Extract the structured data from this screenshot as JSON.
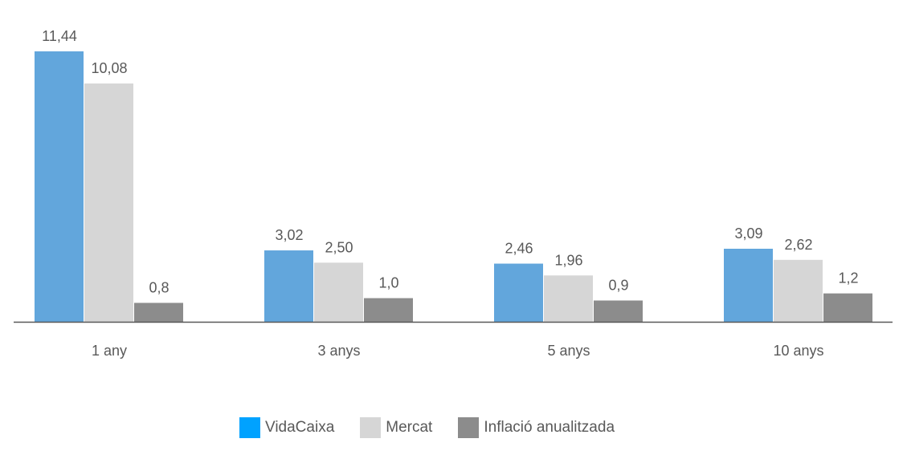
{
  "chart_data": {
    "type": "bar",
    "title": "",
    "xlabel": "",
    "ylabel": "",
    "ylim": [
      0,
      11.44
    ],
    "grid": false,
    "legend_position": "bottom",
    "categories": [
      "1 any",
      "3 anys",
      "5 anys",
      "10 anys"
    ],
    "series": [
      {
        "name": "VidaCaixa",
        "values": [
          11.44,
          3.02,
          2.46,
          3.09
        ],
        "labels": [
          "11,44",
          "3,02",
          "2,46",
          "3,09"
        ],
        "color": "#62A6DC",
        "legend_color": "#00A2FF"
      },
      {
        "name": "Mercat",
        "values": [
          10.08,
          2.5,
          1.96,
          2.62
        ],
        "labels": [
          "10,08",
          "2,50",
          "1,96",
          "2,62"
        ],
        "color": "#D6D6D6",
        "legend_color": "#D6D6D6"
      },
      {
        "name": "Inflació anualitzada",
        "values": [
          0.8,
          1.0,
          0.9,
          1.2
        ],
        "labels": [
          "0,8",
          "1,0",
          "0,9",
          "1,2"
        ],
        "color": "#8C8C8C",
        "legend_color": "#8C8C8C"
      }
    ]
  }
}
